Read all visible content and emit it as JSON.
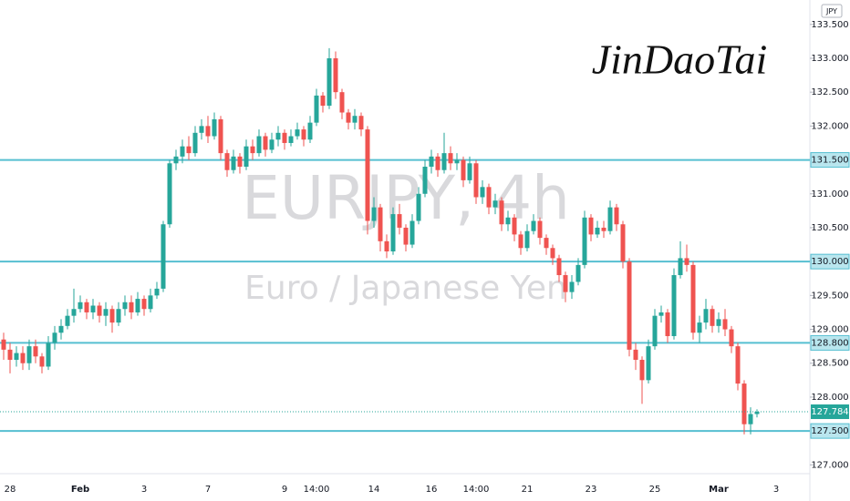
{
  "chart_data": {
    "type": "candlestick",
    "watermark_title": "EURJPY, 4h",
    "watermark_subtitle": "Euro / Japanese Yen",
    "signature": "JinDaoTai",
    "currency": "JPY",
    "up_color": "#26a69a",
    "down_color": "#ef5350",
    "level_color": "#56bfd1",
    "grid": false,
    "ylim": [
      126.87,
      133.86
    ],
    "yticks": [
      {
        "value": 127.0,
        "label": "127.000"
      },
      {
        "value": 128.0,
        "label": "128.000"
      },
      {
        "value": 128.5,
        "label": "128.500"
      },
      {
        "value": 129.0,
        "label": "129.000"
      },
      {
        "value": 129.5,
        "label": "129.500"
      },
      {
        "value": 130.5,
        "label": "130.500"
      },
      {
        "value": 131.0,
        "label": "131.000"
      },
      {
        "value": 132.0,
        "label": "132.000"
      },
      {
        "value": 132.5,
        "label": "132.500"
      },
      {
        "value": 133.0,
        "label": "133.000"
      },
      {
        "value": 133.5,
        "label": "133.500"
      }
    ],
    "levels": [
      {
        "value": 131.5,
        "label": "131.500"
      },
      {
        "value": 130.0,
        "label": "130.000"
      },
      {
        "value": 128.8,
        "label": "128.800"
      },
      {
        "value": 127.5,
        "label": "127.500"
      }
    ],
    "last_price": {
      "value": 127.784,
      "label": "127.784"
    },
    "categories": [
      null,
      "28",
      null,
      null,
      null,
      null,
      null,
      null,
      null,
      null,
      null,
      null,
      "Feb",
      null,
      null,
      null,
      null,
      null,
      null,
      null,
      null,
      null,
      "3",
      null,
      null,
      null,
      null,
      null,
      null,
      null,
      null,
      null,
      "7",
      null,
      null,
      null,
      null,
      null,
      null,
      null,
      null,
      null,
      null,
      null,
      "9",
      null,
      null,
      null,
      null,
      "14:00",
      null,
      null,
      null,
      null,
      null,
      null,
      null,
      null,
      "14",
      null,
      null,
      null,
      null,
      null,
      null,
      null,
      null,
      "16",
      null,
      null,
      null,
      null,
      null,
      null,
      "14:00",
      null,
      null,
      null,
      null,
      null,
      null,
      null,
      "21",
      null,
      null,
      null,
      null,
      null,
      null,
      null,
      null,
      null,
      "23",
      null,
      null,
      null,
      null,
      null,
      null,
      null,
      null,
      null,
      "25",
      null,
      null,
      null,
      null,
      null,
      null,
      null,
      null,
      null,
      "Mar",
      null,
      null,
      null,
      null,
      null,
      null,
      null,
      null,
      "3"
    ],
    "open": [
      128.85,
      128.7,
      128.55,
      128.65,
      128.5,
      128.75,
      128.6,
      128.45,
      128.8,
      128.95,
      129.05,
      129.2,
      129.3,
      129.4,
      129.25,
      129.35,
      129.2,
      129.3,
      129.1,
      129.3,
      129.4,
      129.25,
      129.45,
      129.3,
      129.5,
      129.6,
      130.55,
      131.45,
      131.55,
      131.7,
      131.6,
      131.9,
      132.0,
      131.85,
      132.1,
      131.6,
      131.35,
      131.55,
      131.4,
      131.7,
      131.6,
      131.85,
      131.65,
      131.8,
      131.9,
      131.75,
      131.85,
      131.95,
      131.8,
      132.05,
      132.45,
      132.3,
      133.0,
      132.5,
      132.2,
      132.05,
      132.15,
      131.95,
      130.6,
      130.8,
      130.3,
      130.15,
      130.7,
      130.5,
      130.25,
      130.6,
      131.0,
      131.4,
      131.55,
      131.35,
      131.6,
      131.45,
      131.5,
      131.2,
      131.45,
      130.95,
      131.1,
      130.8,
      130.9,
      130.55,
      130.65,
      130.4,
      130.2,
      130.45,
      130.6,
      130.35,
      130.2,
      130.05,
      129.8,
      129.55,
      129.7,
      129.95,
      130.65,
      130.4,
      130.5,
      130.45,
      130.8,
      130.55,
      130.0,
      128.7,
      128.55,
      128.25,
      128.75,
      129.2,
      129.25,
      128.9,
      129.8,
      130.05,
      129.95,
      128.95,
      129.1,
      129.3,
      129.05,
      129.15,
      129.0,
      128.75,
      128.2,
      127.6,
      127.75,
      null,
      null,
      null
    ],
    "high": [
      128.95,
      128.8,
      128.75,
      128.75,
      128.85,
      128.85,
      128.65,
      128.9,
      129.05,
      129.15,
      129.3,
      129.6,
      129.5,
      129.45,
      129.45,
      129.4,
      129.4,
      129.35,
      129.4,
      129.5,
      129.5,
      129.55,
      129.5,
      129.6,
      129.7,
      130.6,
      131.5,
      131.65,
      131.8,
      131.85,
      132.0,
      132.1,
      132.15,
      132.2,
      132.15,
      131.65,
      131.65,
      131.6,
      131.8,
      131.8,
      131.95,
      131.9,
      131.9,
      132.0,
      131.95,
      131.95,
      132.05,
      132.0,
      132.15,
      132.55,
      132.5,
      133.15,
      133.1,
      132.55,
      132.25,
      132.25,
      132.2,
      132.0,
      130.95,
      130.85,
      130.4,
      130.8,
      130.85,
      130.55,
      130.7,
      131.1,
      131.5,
      131.65,
      131.6,
      131.9,
      131.7,
      131.6,
      131.55,
      131.55,
      131.5,
      131.2,
      131.15,
      131.0,
      130.95,
      130.75,
      130.7,
      130.45,
      130.55,
      130.7,
      130.65,
      130.4,
      130.25,
      130.1,
      129.85,
      129.8,
      130.05,
      130.75,
      130.7,
      130.6,
      130.6,
      130.9,
      130.85,
      130.6,
      130.05,
      128.8,
      128.6,
      128.85,
      129.3,
      129.35,
      129.3,
      129.9,
      130.3,
      130.25,
      130.0,
      129.2,
      129.45,
      129.35,
      129.25,
      129.3,
      129.05,
      128.8,
      128.25,
      127.85,
      127.82,
      null,
      null,
      null
    ],
    "low": [
      128.55,
      128.35,
      128.45,
      128.4,
      128.4,
      128.5,
      128.35,
      128.4,
      128.7,
      128.85,
      129.0,
      129.1,
      129.25,
      129.15,
      129.15,
      129.1,
      129.05,
      128.95,
      129.05,
      129.2,
      129.15,
      129.2,
      129.2,
      129.25,
      129.45,
      129.55,
      130.5,
      131.35,
      131.45,
      131.5,
      131.55,
      131.8,
      131.75,
      131.8,
      131.5,
      131.25,
      131.3,
      131.3,
      131.35,
      131.5,
      131.55,
      131.55,
      131.6,
      131.7,
      131.65,
      131.7,
      131.8,
      131.7,
      131.75,
      132.0,
      132.2,
      132.25,
      132.4,
      132.1,
      131.95,
      131.95,
      131.85,
      130.4,
      130.5,
      130.15,
      130.05,
      130.1,
      130.4,
      130.15,
      130.2,
      130.55,
      130.95,
      131.3,
      131.25,
      131.3,
      131.35,
      131.35,
      131.1,
      131.15,
      130.85,
      130.85,
      130.7,
      130.7,
      130.45,
      130.45,
      130.3,
      130.1,
      130.15,
      130.4,
      130.25,
      130.1,
      129.95,
      129.7,
      129.4,
      129.45,
      129.65,
      129.9,
      130.3,
      130.35,
      130.35,
      130.4,
      130.45,
      129.9,
      128.6,
      128.4,
      127.9,
      128.2,
      128.7,
      129.1,
      128.8,
      128.85,
      129.75,
      129.85,
      128.85,
      128.8,
      129.0,
      128.95,
      128.95,
      128.9,
      128.65,
      128.1,
      127.45,
      127.45,
      127.7,
      null,
      null,
      null
    ],
    "close": [
      128.7,
      128.55,
      128.65,
      128.5,
      128.75,
      128.6,
      128.45,
      128.8,
      128.95,
      129.05,
      129.2,
      129.3,
      129.4,
      129.25,
      129.35,
      129.2,
      129.3,
      129.1,
      129.3,
      129.4,
      129.25,
      129.45,
      129.3,
      129.5,
      129.6,
      130.55,
      131.45,
      131.55,
      131.7,
      131.6,
      131.9,
      132.0,
      131.85,
      132.1,
      131.6,
      131.35,
      131.55,
      131.4,
      131.7,
      131.6,
      131.85,
      131.65,
      131.8,
      131.9,
      131.75,
      131.85,
      131.95,
      131.8,
      132.05,
      132.45,
      132.3,
      133.0,
      132.5,
      132.2,
      132.05,
      132.15,
      131.95,
      130.6,
      130.8,
      130.3,
      130.15,
      130.7,
      130.5,
      130.25,
      130.6,
      131.0,
      131.4,
      131.55,
      131.35,
      131.6,
      131.45,
      131.5,
      131.2,
      131.45,
      130.95,
      131.1,
      130.8,
      130.9,
      130.55,
      130.65,
      130.4,
      130.2,
      130.45,
      130.6,
      130.35,
      130.2,
      130.05,
      129.8,
      129.55,
      129.7,
      129.95,
      130.65,
      130.4,
      130.5,
      130.45,
      130.8,
      130.55,
      130.0,
      128.7,
      128.55,
      128.25,
      128.75,
      129.2,
      129.25,
      128.9,
      129.8,
      130.05,
      129.95,
      128.95,
      129.1,
      129.3,
      129.05,
      129.15,
      129.0,
      128.75,
      128.2,
      127.6,
      127.75,
      127.784,
      null,
      null,
      null
    ]
  }
}
